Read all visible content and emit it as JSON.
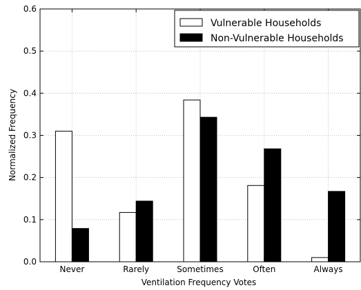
{
  "chart_data": {
    "type": "bar",
    "title": "",
    "xlabel": "Ventilation Frequency Votes",
    "ylabel": "Normalized Frequency",
    "categories": [
      "Never",
      "Rarely",
      "Sometimes",
      "Often",
      "Always"
    ],
    "ylim": [
      0,
      0.6
    ],
    "yticks": [
      "0.0",
      "0.1",
      "0.2",
      "0.3",
      "0.4",
      "0.5",
      "0.6"
    ],
    "grid": true,
    "legend_position": "top-right",
    "series": [
      {
        "name": "Vulnerable Households",
        "color": "#ffffff",
        "values": [
          0.31,
          0.117,
          0.384,
          0.181,
          0.01
        ]
      },
      {
        "name": "Non-Vulnerable Households",
        "color": "#000000",
        "values": [
          0.079,
          0.144,
          0.343,
          0.268,
          0.167
        ]
      }
    ]
  }
}
